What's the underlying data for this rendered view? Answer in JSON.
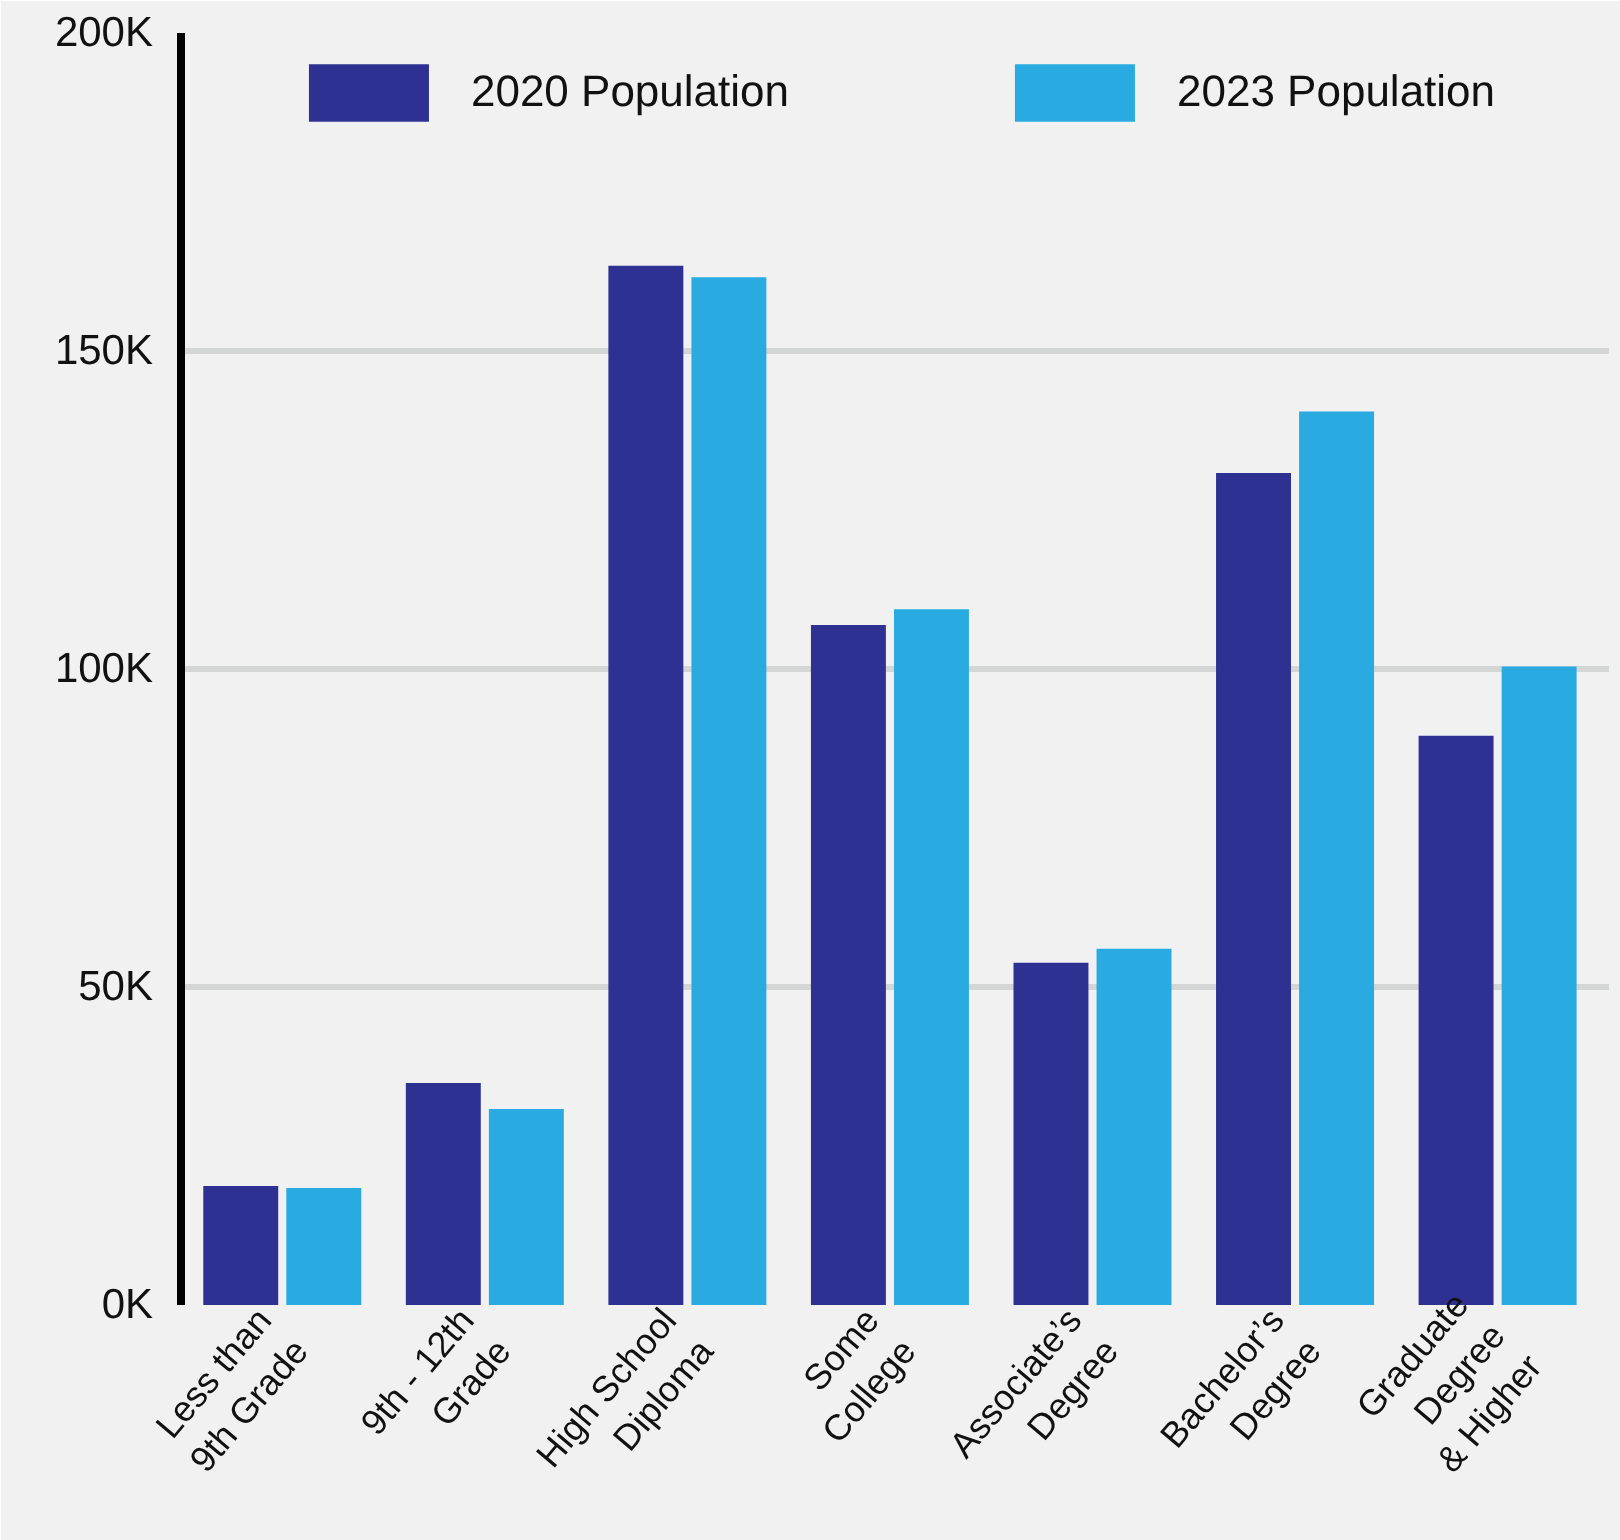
{
  "chart_data": {
    "type": "bar",
    "categories": [
      "Less than\n9th Grade",
      "9th - 12th\nGrade",
      "High School\nDiploma",
      "Some\nCollege",
      "Associate’s\nDegree",
      "Bachelor’s\nDegree",
      "Graduate\nDegree\n& Higher"
    ],
    "series": [
      {
        "name": "2020 Population",
        "color": "#2e3192",
        "values": [
          18700,
          34900,
          163400,
          106900,
          53800,
          130800,
          89500
        ]
      },
      {
        "name": "2023 Population",
        "color": "#29abe2",
        "values": [
          18400,
          30800,
          161600,
          109400,
          56000,
          140500,
          100400
        ]
      }
    ],
    "ylim": [
      0,
      200000
    ],
    "yticks": [
      {
        "value": 0,
        "label": "0K"
      },
      {
        "value": 50000,
        "label": "50K"
      },
      {
        "value": 100000,
        "label": "100K"
      },
      {
        "value": 150000,
        "label": "150K"
      },
      {
        "value": 200000,
        "label": "200K"
      }
    ],
    "grid": "y",
    "legend": "top"
  }
}
